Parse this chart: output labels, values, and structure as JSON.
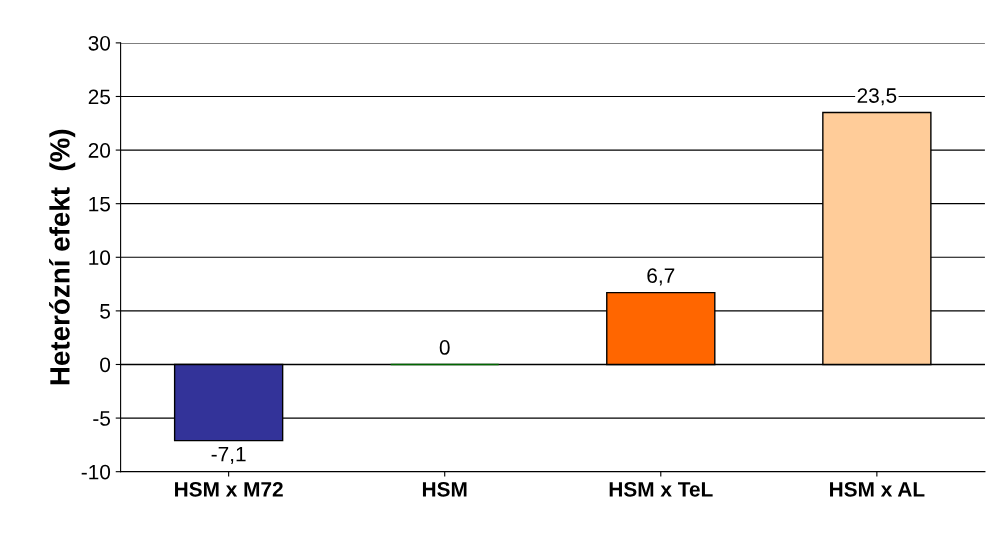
{
  "chart_data": {
    "type": "bar",
    "ylabel": "Heterózní efekt  (%)",
    "categories": [
      "HSM x M72",
      "HSM",
      "HSM x TeL",
      "HSM x AL"
    ],
    "values": [
      -7.1,
      0,
      6.7,
      23.5
    ],
    "colors": [
      "#333399",
      "#006600",
      "#ff6600",
      "#ffcc99"
    ],
    "value_labels": [
      "-7,1",
      "0",
      "6,7",
      "23,5"
    ],
    "ylim": [
      -10,
      30
    ],
    "yticks": [
      -10,
      -5,
      0,
      5,
      10,
      15,
      20,
      25,
      30
    ],
    "grid": "y",
    "legend": false
  }
}
